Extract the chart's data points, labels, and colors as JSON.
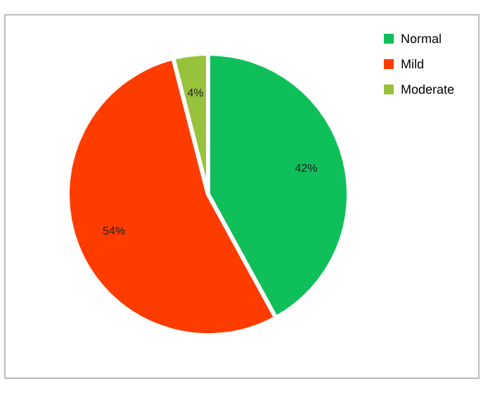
{
  "chart_data": {
    "type": "pie",
    "categories": [
      "Normal",
      "Mild",
      "Moderate"
    ],
    "values": [
      42,
      54,
      4
    ],
    "colors": [
      "#0fbf5a",
      "#ff3c00",
      "#99c23c"
    ],
    "value_labels": [
      "42%",
      "54%",
      "4%"
    ],
    "legend": "right"
  }
}
